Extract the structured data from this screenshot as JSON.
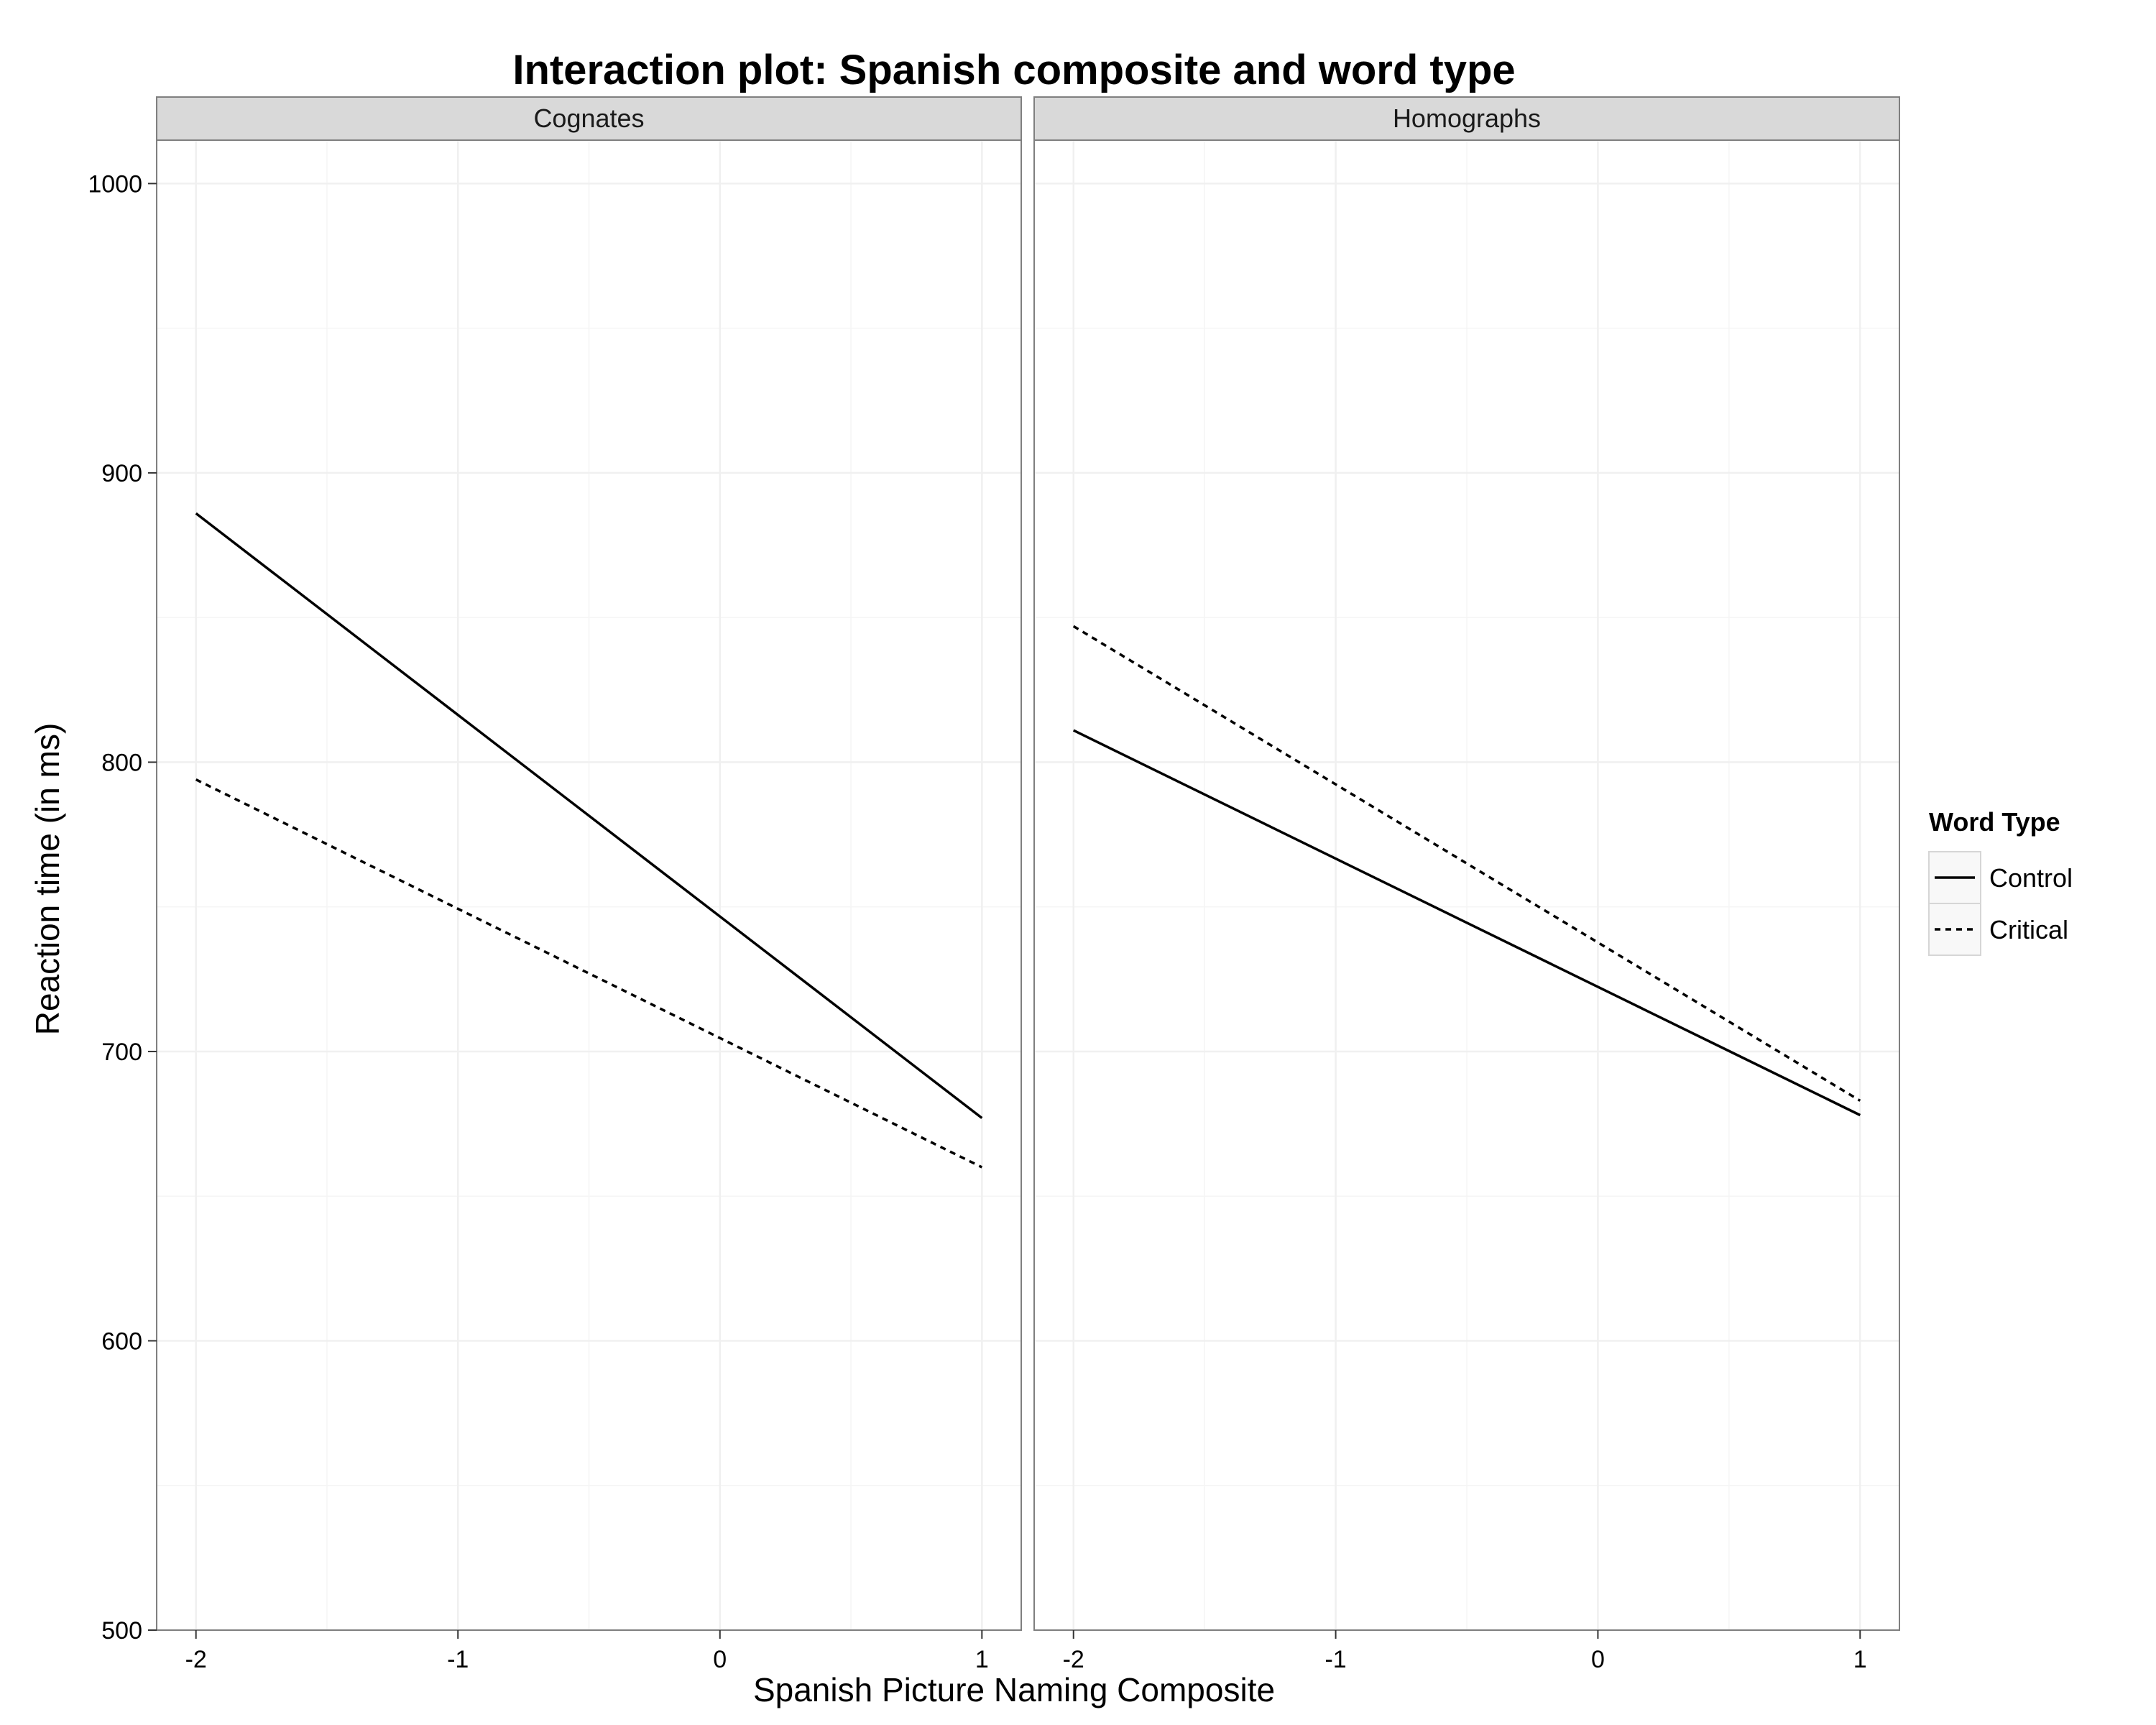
{
  "chart_data": {
    "type": "line",
    "title": "Interaction plot: Spanish composite and word type",
    "xlabel": "Spanish Picture Naming Composite",
    "ylabel": "Reaction time (in ms)",
    "xlim": [
      -2.15,
      1.15
    ],
    "ylim": [
      500,
      1015
    ],
    "x_ticks": [
      -2,
      -1,
      0,
      1
    ],
    "x_tick_labels": [
      "-2",
      "-1",
      "0",
      "1"
    ],
    "y_ticks": [
      500,
      600,
      700,
      800,
      900,
      1000
    ],
    "y_tick_labels": [
      "500",
      "600",
      "700",
      "800",
      "900",
      "1000"
    ],
    "grid": true,
    "legend": {
      "title": "Word Type",
      "placement": "right",
      "entries": [
        {
          "name": "Control",
          "linestyle": "solid"
        },
        {
          "name": "Critical",
          "linestyle": "dashed"
        }
      ]
    },
    "panels": [
      {
        "name": "Cognates",
        "series": [
          {
            "name": "Control",
            "x": [
              -2,
              1
            ],
            "y": [
              886,
              677
            ]
          },
          {
            "name": "Critical",
            "x": [
              -2,
              1
            ],
            "y": [
              794,
              660
            ]
          }
        ]
      },
      {
        "name": "Homographs",
        "series": [
          {
            "name": "Control",
            "x": [
              -2,
              1
            ],
            "y": [
              811,
              678
            ]
          },
          {
            "name": "Critical",
            "x": [
              -2,
              1
            ],
            "y": [
              847,
              683
            ]
          }
        ]
      }
    ],
    "colors": {
      "line": "#000000",
      "strip_fill": "#d9d9d9",
      "panel_border": "#7f7f7f",
      "grid": "#f0f0f0"
    }
  }
}
